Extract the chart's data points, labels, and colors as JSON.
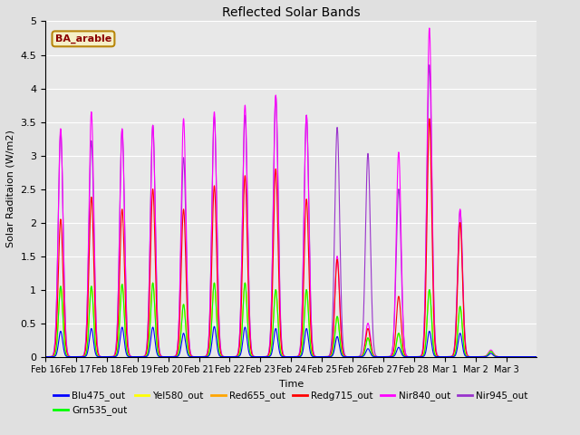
{
  "title": "Reflected Solar Bands",
  "xlabel": "Time",
  "ylabel": "Solar Raditaion (W/m2)",
  "annotation": "BA_arable",
  "ylim": [
    0,
    5.0
  ],
  "yticks": [
    0.0,
    0.5,
    1.0,
    1.5,
    2.0,
    2.5,
    3.0,
    3.5,
    4.0,
    4.5,
    5.0
  ],
  "background_color": "#e0e0e0",
  "plot_bg_color": "#e8e8e8",
  "series": [
    {
      "name": "Blu475_out",
      "color": "#0000ff"
    },
    {
      "name": "Grn535_out",
      "color": "#00ff00"
    },
    {
      "name": "Yel580_out",
      "color": "#ffff00"
    },
    {
      "name": "Red655_out",
      "color": "#ffa500"
    },
    {
      "name": "Redg715_out",
      "color": "#ff0000"
    },
    {
      "name": "Nir840_out",
      "color": "#ff00ff"
    },
    {
      "name": "Nir945_out",
      "color": "#9933cc"
    }
  ],
  "xtick_labels": [
    "Feb 16",
    "Feb 17",
    "Feb 18",
    "Feb 19",
    "Feb 20",
    "Feb 21",
    "Feb 22",
    "Feb 23",
    "Feb 24",
    "Feb 25",
    "Feb 26",
    "Feb 27",
    "Feb 28",
    "Mar 1",
    "Mar 2",
    "Mar 3"
  ],
  "n_days": 16,
  "blue_peaks": [
    0.38,
    0.42,
    0.44,
    0.44,
    0.35,
    0.45,
    0.44,
    0.42,
    0.42,
    0.3,
    0.12,
    0.14,
    0.38,
    0.35,
    0.05,
    0.0
  ],
  "green_peaks": [
    1.05,
    1.05,
    1.08,
    1.1,
    0.78,
    1.1,
    1.1,
    1.0,
    1.0,
    0.6,
    0.28,
    0.35,
    1.0,
    0.75,
    0.08,
    0.0
  ],
  "yellow_peaks": [
    1.05,
    1.05,
    1.08,
    1.1,
    0.78,
    1.1,
    1.1,
    1.0,
    1.0,
    0.6,
    0.28,
    0.35,
    1.0,
    0.75,
    0.08,
    0.0
  ],
  "orange_peaks": [
    1.05,
    1.05,
    1.08,
    1.1,
    0.78,
    1.1,
    1.1,
    1.0,
    1.0,
    0.6,
    0.28,
    0.35,
    1.0,
    0.75,
    0.08,
    0.0
  ],
  "red_peaks": [
    2.05,
    2.38,
    2.2,
    2.5,
    2.2,
    2.55,
    2.7,
    2.8,
    2.35,
    1.45,
    0.42,
    0.9,
    3.55,
    2.0,
    0.08,
    0.0
  ],
  "nir840_peaks": [
    3.4,
    3.65,
    3.4,
    3.45,
    3.55,
    3.65,
    3.75,
    3.9,
    3.6,
    1.5,
    0.5,
    3.05,
    4.9,
    2.2,
    0.1,
    0.0
  ],
  "nir945_peaks": [
    3.35,
    3.22,
    3.38,
    3.45,
    2.97,
    3.58,
    3.6,
    3.88,
    3.6,
    3.42,
    3.03,
    2.5,
    4.35,
    2.18,
    0.08,
    0.0
  ]
}
